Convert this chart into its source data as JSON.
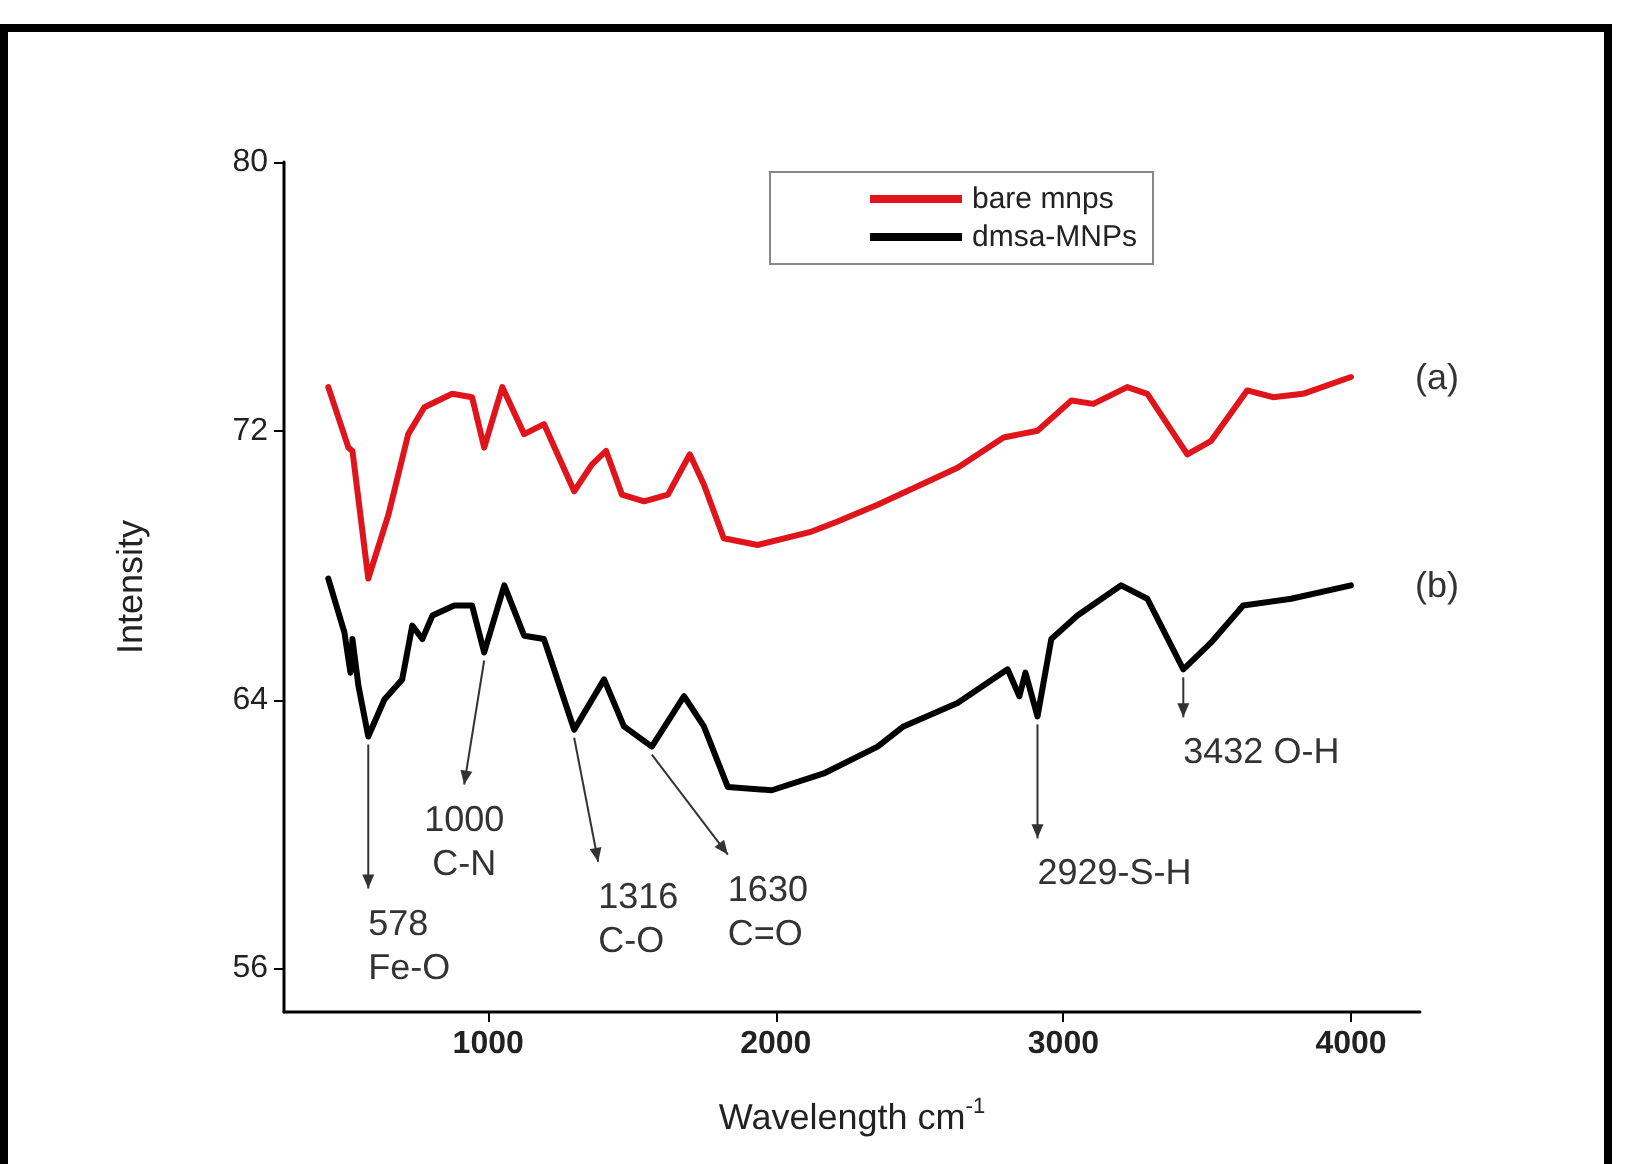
{
  "chart_data": {
    "type": "line",
    "xlabel": "Wavelength cm$^{-1}$",
    "ylabel": "Intensity",
    "xlim": [
      290,
      4240
    ],
    "xticks": [
      1000,
      2000,
      3000,
      4000
    ],
    "ylim": [
      54.7,
      80
    ],
    "yticks": [
      56,
      64,
      72,
      80
    ],
    "grid": false,
    "legend": "top",
    "marker": "none",
    "line_style": "solid",
    "series": [
      {
        "name": "bare mnps",
        "color": "#e0141b",
        "x": [
          444,
          514,
          528,
          583,
          653,
          722,
          778,
          875,
          944,
          986,
          1049,
          1125,
          1194,
          1299,
          1361,
          1410,
          1465,
          1542,
          1625,
          1701,
          1750,
          1819,
          1937,
          2125,
          2215,
          2354,
          2632,
          2792,
          2910,
          3028,
          3104,
          3222,
          3292,
          3431,
          3514,
          3639,
          3729,
          3833,
          4000
        ],
        "values": [
          73.3,
          71.5,
          71.4,
          67.6,
          69.5,
          71.9,
          72.7,
          73.1,
          73.0,
          71.5,
          73.3,
          71.9,
          72.2,
          70.2,
          71.0,
          71.4,
          70.1,
          69.9,
          70.1,
          71.3,
          70.4,
          68.8,
          68.6,
          69.0,
          69.3,
          69.8,
          70.9,
          71.8,
          72.0,
          72.9,
          72.8,
          73.3,
          73.1,
          71.3,
          71.7,
          73.2,
          73.0,
          73.1,
          73.6
        ]
      },
      {
        "name": "dmsa-MNPs",
        "color": "#000000",
        "x": [
          444,
          500,
          521,
          528,
          549,
          583,
          639,
          701,
          736,
          771,
          806,
          882,
          944,
          986,
          1056,
          1125,
          1194,
          1299,
          1403,
          1472,
          1569,
          1681,
          1750,
          1833,
          1986,
          2167,
          2354,
          2444,
          2632,
          2806,
          2847,
          2868,
          2910,
          2958,
          3049,
          3201,
          3292,
          3417,
          3514,
          3625,
          3792,
          4000
        ],
        "values": [
          67.6,
          66.0,
          64.8,
          65.8,
          64.4,
          62.9,
          64.0,
          64.6,
          66.2,
          65.8,
          66.5,
          66.8,
          66.8,
          65.4,
          67.4,
          65.9,
          65.8,
          63.1,
          64.6,
          63.2,
          62.6,
          64.1,
          63.2,
          61.4,
          61.3,
          61.8,
          62.6,
          63.2,
          63.9,
          64.9,
          64.1,
          64.8,
          63.5,
          65.8,
          66.5,
          67.4,
          67.0,
          64.9,
          65.7,
          66.8,
          67.0,
          67.4
        ]
      }
    ],
    "annotations": [
      {
        "text": "(a)",
        "x": 4000,
        "y": 73.6
      },
      {
        "text": "(b)",
        "x": 4000,
        "y": 67.4
      },
      {
        "text": "578\nFe-O",
        "x": 583,
        "y": 62.9
      },
      {
        "text": "1000\nC-N",
        "x": 986,
        "y": 65.4
      },
      {
        "text": "1316\nC-O",
        "x": 1299,
        "y": 63.1
      },
      {
        "text": "1630\nC=O",
        "x": 1569,
        "y": 62.6
      },
      {
        "text": "2929-S-H",
        "x": 2910,
        "y": 63.5
      },
      {
        "text": "3432 O-H",
        "x": 3417,
        "y": 64.9
      }
    ]
  }
}
